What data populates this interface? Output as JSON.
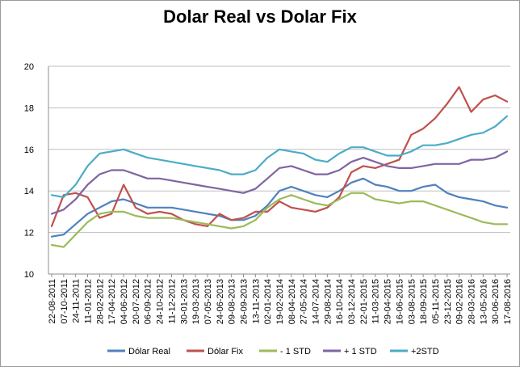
{
  "chart_data": {
    "type": "line",
    "title": "Dolar Real vs Dolar Fix",
    "xlabel": "",
    "ylabel": "",
    "ylim": [
      10,
      20
    ],
    "yticks": [
      "10",
      "12",
      "14",
      "16",
      "18",
      "20"
    ],
    "grid": "horizontal",
    "legend_position": "bottom",
    "categories": [
      "22-08-2011",
      "07-10-2011",
      "24-11-2011",
      "11-01-2012",
      "28-02-2012",
      "17-04-2012",
      "04-06-2012",
      "20-07-2012",
      "06-09-2012",
      "24-10-2012",
      "11-12-2012",
      "30-01-2013",
      "19-03-2013",
      "07-05-2013",
      "24-06-2013",
      "09-08-2013",
      "26-09-2013",
      "13-11-2013",
      "02-01-2014",
      "19-02-2014",
      "08-04-2014",
      "27-05-2014",
      "14-07-2014",
      "29-08-2014",
      "16-10-2014",
      "03-12-2014",
      "22-01-2015",
      "11-03-2015",
      "29-04-2015",
      "16-06-2015",
      "03-08-2015",
      "18-09-2015",
      "05-11-2015",
      "23-12-2015",
      "09-02-2016",
      "28-03-2016",
      "13-05-2016",
      "30-06-2016",
      "17-08-2016"
    ],
    "series": [
      {
        "name": "Dólar Real",
        "color": "#4f81bd",
        "values": [
          11.8,
          11.9,
          12.4,
          12.9,
          13.2,
          13.5,
          13.6,
          13.4,
          13.2,
          13.2,
          13.2,
          13.1,
          13.0,
          12.9,
          12.8,
          12.6,
          12.6,
          12.8,
          13.3,
          14.0,
          14.2,
          14.0,
          13.8,
          13.7,
          14.0,
          14.4,
          14.6,
          14.3,
          14.2,
          14.0,
          14.0,
          14.2,
          14.3,
          13.9,
          13.7,
          13.6,
          13.5,
          13.3,
          13.2
        ]
      },
      {
        "name": "Dólar Fix",
        "color": "#c0504d",
        "values": [
          12.3,
          13.8,
          13.9,
          13.7,
          12.7,
          12.9,
          14.3,
          13.2,
          12.9,
          13.0,
          12.9,
          12.6,
          12.4,
          12.3,
          12.9,
          12.6,
          12.7,
          13.0,
          13.0,
          13.5,
          13.2,
          13.1,
          13.0,
          13.2,
          13.7,
          14.9,
          15.2,
          15.1,
          15.3,
          15.5,
          16.7,
          17.0,
          17.5,
          18.2,
          19.0,
          17.8,
          18.4,
          18.6,
          18.3
        ]
      },
      {
        "name": "- 1 STD",
        "color": "#9bbb59",
        "values": [
          11.4,
          11.3,
          11.9,
          12.5,
          12.9,
          13.0,
          13.0,
          12.8,
          12.7,
          12.7,
          12.7,
          12.6,
          12.5,
          12.4,
          12.3,
          12.2,
          12.3,
          12.6,
          13.2,
          13.6,
          13.8,
          13.6,
          13.4,
          13.3,
          13.6,
          13.9,
          13.9,
          13.6,
          13.5,
          13.4,
          13.5,
          13.5,
          13.3,
          13.1,
          12.9,
          12.7,
          12.5,
          12.4,
          12.4
        ]
      },
      {
        "name": "+ 1 STD",
        "color": "#8064a2",
        "values": [
          12.9,
          13.1,
          13.6,
          14.3,
          14.8,
          15.0,
          15.0,
          14.8,
          14.6,
          14.6,
          14.5,
          14.4,
          14.3,
          14.2,
          14.1,
          14.0,
          13.9,
          14.1,
          14.6,
          15.1,
          15.2,
          15.0,
          14.8,
          14.8,
          15.0,
          15.4,
          15.6,
          15.4,
          15.2,
          15.1,
          15.1,
          15.2,
          15.3,
          15.3,
          15.3,
          15.5,
          15.5,
          15.6,
          15.9
        ]
      },
      {
        "name": "+2STD",
        "color": "#4bacc6",
        "values": [
          13.8,
          13.7,
          14.3,
          15.2,
          15.8,
          15.9,
          16.0,
          15.8,
          15.6,
          15.5,
          15.4,
          15.3,
          15.2,
          15.1,
          15.0,
          14.8,
          14.8,
          15.0,
          15.6,
          16.0,
          15.9,
          15.8,
          15.5,
          15.4,
          15.8,
          16.1,
          16.1,
          15.9,
          15.7,
          15.7,
          15.9,
          16.2,
          16.2,
          16.3,
          16.5,
          16.7,
          16.8,
          17.1,
          17.6
        ]
      }
    ]
  }
}
